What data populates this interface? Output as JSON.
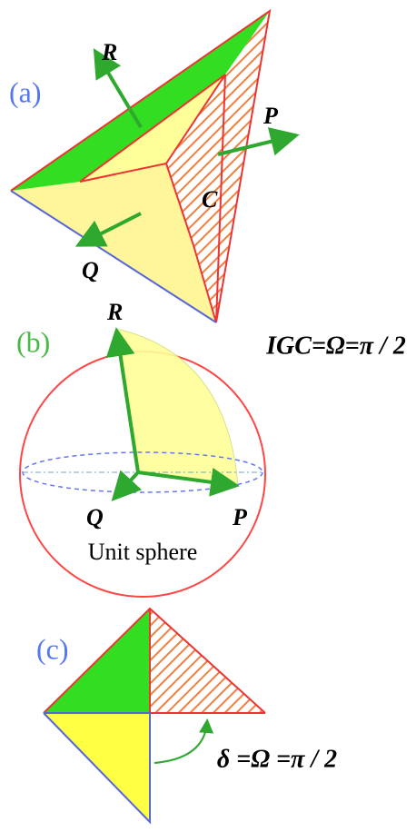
{
  "panels": [
    {
      "label": "(a)",
      "vectors": [
        "R",
        "P",
        "Q"
      ],
      "region": "C"
    },
    {
      "label": "(b)",
      "vectors": [
        "R",
        "Q",
        "P"
      ],
      "equation": "IGC=Ω=π / 2",
      "caption": "Unit sphere"
    },
    {
      "label": "(c)",
      "equation": "δ =Ω =π / 2"
    }
  ]
}
